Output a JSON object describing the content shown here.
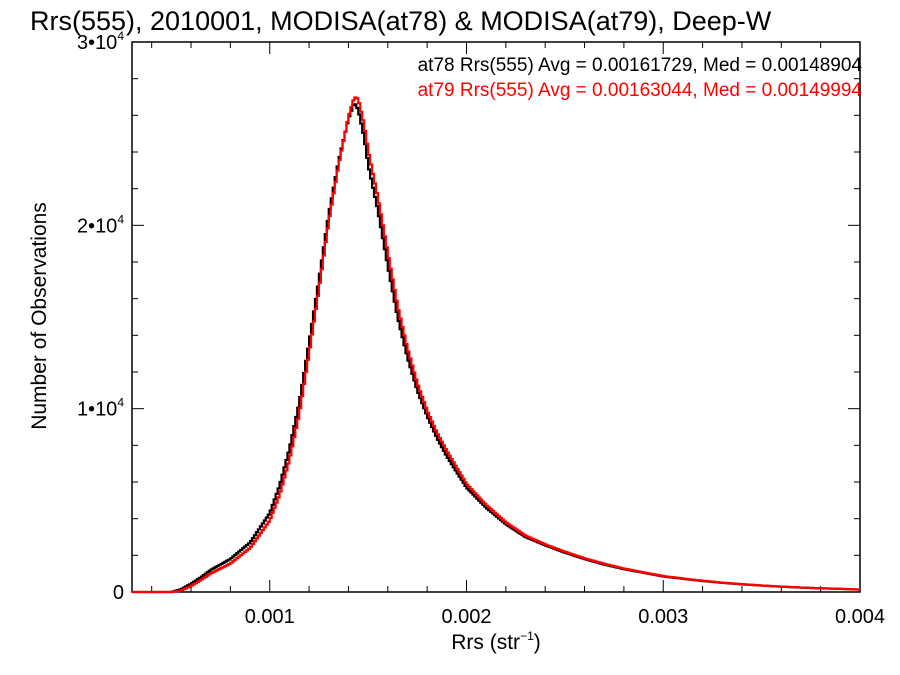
{
  "chart_data": {
    "type": "histogram",
    "title": "Rrs(555), 2010001, MODISA(at78) & MODISA(at79), Deep-W",
    "xlabel": {
      "base": "Rrs (str",
      "sup": "−1",
      "close": ")"
    },
    "ylabel": "Number of Observations",
    "xlim": [
      0.0003,
      0.004
    ],
    "ylim": [
      0,
      30000
    ],
    "xticks": [
      {
        "value": 0.001,
        "label": "0.001"
      },
      {
        "value": 0.002,
        "label": "0.002"
      },
      {
        "value": 0.003,
        "label": "0.003"
      },
      {
        "value": 0.004,
        "label": "0.004"
      }
    ],
    "yticks": [
      {
        "value": 0,
        "mant": "0",
        "exp": ""
      },
      {
        "value": 10000,
        "mant": "1•10",
        "exp": "4"
      },
      {
        "value": 20000,
        "mant": "2•10",
        "exp": "4"
      },
      {
        "value": 30000,
        "mant": "3•10",
        "exp": "4"
      }
    ],
    "legend_position": "top-right",
    "series": [
      {
        "name": "at78",
        "color": "#000000",
        "legend": "at78 Rrs(555) Avg = 0.00161729, Med = 0.00148904",
        "x": [
          0.0003,
          0.0004,
          0.0005,
          0.00055,
          0.0006,
          0.00065,
          0.0007,
          0.0008,
          0.0009,
          0.001,
          0.00105,
          0.0011,
          0.00115,
          0.0012,
          0.00125,
          0.0013,
          0.00135,
          0.0014,
          0.00143,
          0.00145,
          0.00148,
          0.0015,
          0.00155,
          0.0016,
          0.00165,
          0.0017,
          0.00175,
          0.0018,
          0.00185,
          0.0019,
          0.002,
          0.0021,
          0.0022,
          0.0023,
          0.0024,
          0.0025,
          0.0026,
          0.0027,
          0.0028,
          0.0029,
          0.003,
          0.0031,
          0.0032,
          0.0033,
          0.0034,
          0.0035,
          0.0036,
          0.0037,
          0.0038,
          0.0039,
          0.004
        ],
        "y": [
          0,
          0,
          0,
          150,
          450,
          800,
          1200,
          1800,
          2700,
          4300,
          5800,
          7800,
          10300,
          13600,
          17000,
          20600,
          23500,
          25800,
          26700,
          26300,
          24800,
          23300,
          20800,
          17800,
          15000,
          12800,
          11000,
          9600,
          8400,
          7400,
          5700,
          4600,
          3700,
          3000,
          2550,
          2150,
          1800,
          1500,
          1250,
          1050,
          850,
          720,
          600,
          500,
          420,
          350,
          290,
          240,
          200,
          170,
          130
        ]
      },
      {
        "name": "at79",
        "color": "#ff0000",
        "legend": "at79 Rrs(555) Avg = 0.00163044, Med = 0.00149994",
        "x": [
          0.0003,
          0.0004,
          0.0005,
          0.00055,
          0.0006,
          0.00065,
          0.0007,
          0.0008,
          0.0009,
          0.001,
          0.00105,
          0.0011,
          0.00115,
          0.0012,
          0.00125,
          0.0013,
          0.00135,
          0.0014,
          0.00143,
          0.00145,
          0.00148,
          0.0015,
          0.00155,
          0.0016,
          0.00165,
          0.0017,
          0.00175,
          0.0018,
          0.00185,
          0.0019,
          0.002,
          0.0021,
          0.0022,
          0.0023,
          0.0024,
          0.0025,
          0.0026,
          0.0027,
          0.0028,
          0.0029,
          0.003,
          0.0031,
          0.0032,
          0.0033,
          0.0034,
          0.0035,
          0.0036,
          0.0037,
          0.0038,
          0.0039,
          0.004
        ],
        "y": [
          0,
          0,
          0,
          80,
          320,
          650,
          1000,
          1550,
          2400,
          3900,
          5300,
          7200,
          9700,
          13000,
          16500,
          20200,
          23300,
          25900,
          27000,
          26900,
          25500,
          24100,
          21500,
          18500,
          15600,
          13300,
          11400,
          9900,
          8700,
          7700,
          5900,
          4750,
          3800,
          3080,
          2600,
          2200,
          1840,
          1540,
          1280,
          1070,
          870,
          735,
          615,
          510,
          430,
          355,
          295,
          245,
          205,
          172,
          135
        ]
      }
    ]
  }
}
